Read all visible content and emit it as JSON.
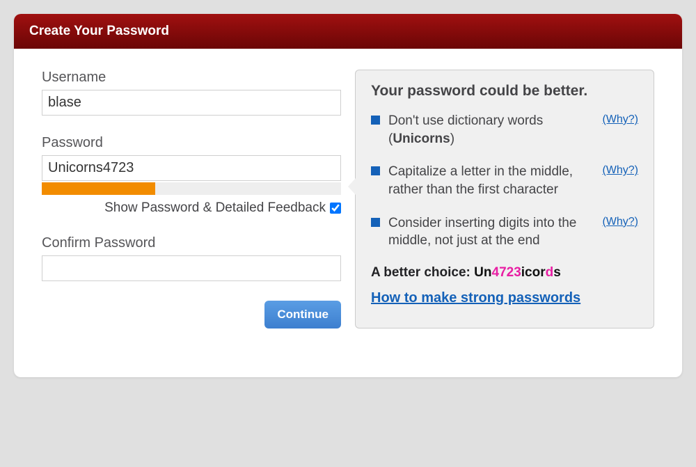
{
  "header": {
    "title": "Create Your Password"
  },
  "form": {
    "username_label": "Username",
    "username_value": "blase",
    "password_label": "Password",
    "password_value": "Unicorns4723",
    "strength_percent": 38,
    "strength_color": "#f28c00",
    "strength_bg": "#eeeeee",
    "show_password_label": "Show Password & Detailed Feedback",
    "show_password_checked": true,
    "confirm_label": "Confirm Password",
    "confirm_value": "",
    "continue_label": "Continue"
  },
  "feedback": {
    "title": "Your password could be better.",
    "bullet_color": "#1461b8",
    "why_label": "(Why?)",
    "items": [
      {
        "pre": "Don't use dictionary words (",
        "bold": "Unicorns",
        "post": ")",
        "has_why": true
      },
      {
        "pre": "Capitalize a letter in the middle, rather than the first character",
        "bold": "",
        "post": "",
        "has_why": true
      },
      {
        "pre": "Consider inserting digits into the middle, not just at the end",
        "bold": "",
        "post": "",
        "has_why": true
      }
    ],
    "better_choice_label": "A better choice: ",
    "better_choice_segments": [
      {
        "text": "Un",
        "class": "seg-normal"
      },
      {
        "text": "4723",
        "class": "seg-hl1"
      },
      {
        "text": "icor",
        "class": "seg-normal"
      },
      {
        "text": "d",
        "class": "seg-hl2"
      },
      {
        "text": "s",
        "class": "seg-normal"
      }
    ],
    "howto_label": "How to make strong passwords"
  },
  "colors": {
    "page_bg": "#e0e0e0",
    "card_bg": "#ffffff",
    "header_grad_top": "#a01010",
    "header_grad_bottom": "#6b0606",
    "panel_bg": "#f0f0f0",
    "panel_border": "#cccccc",
    "text_color": "#444447",
    "link_color": "#1461b8",
    "highlight_color": "#e81ea3",
    "button_grad_top": "#5a9de4",
    "button_grad_bottom": "#3d7fcf"
  }
}
